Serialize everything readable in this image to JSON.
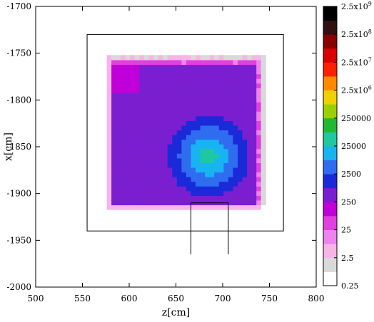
{
  "chart_data": {
    "type": "heatmap",
    "title": "",
    "xlabel": "z[cm]",
    "ylabel": "x[cm]",
    "xlim": [
      500,
      800
    ],
    "ylim": [
      -2000,
      -1700
    ],
    "xticks": [
      "500",
      "550",
      "600",
      "650",
      "700",
      "750",
      "800"
    ],
    "yticks": [
      "-2000",
      "-1950",
      "-1900",
      "-1850",
      "-1800",
      "-1750",
      "-1700"
    ],
    "grid": false,
    "colorbar": {
      "scale": "log",
      "range": [
        0.25,
        2500000000
      ],
      "labels": [
        {
          "value": 0.25,
          "text": "0.25"
        },
        {
          "value": 2.5,
          "text": "2.5"
        },
        {
          "value": 25,
          "text": "25"
        },
        {
          "value": 250,
          "text": "250"
        },
        {
          "value": 2500,
          "text": "2500"
        },
        {
          "value": 25000,
          "text": "25000"
        },
        {
          "value": 250000,
          "text": "250000"
        },
        {
          "value": 2500000,
          "text": "2.5x10",
          "exp": "6"
        },
        {
          "value": 25000000,
          "text": "2.5x10",
          "exp": "7"
        },
        {
          "value": 250000000,
          "text": "2.5x10",
          "exp": "8"
        },
        {
          "value": 2500000000,
          "text": "2.5x10",
          "exp": "9"
        }
      ],
      "stops": [
        "#ffffff",
        "#d9d9d9",
        "#f7b4e6",
        "#ee82ee",
        "#e040e0",
        "#c000d8",
        "#7a1fd0",
        "#1a2ad8",
        "#2f6cf0",
        "#18b4f2",
        "#20c8a0",
        "#22b830",
        "#9ad000",
        "#f0d000",
        "#ff8a00",
        "#ff2000",
        "#d80000",
        "#8a0000",
        "#301010",
        "#000000"
      ]
    },
    "field": {
      "peak_z": 685,
      "peak_x": -1860,
      "peak_value": 60000,
      "core_zlim": [
        583,
        737
      ],
      "core_xlim": [
        -1910,
        -1760
      ],
      "base_value": 700
    },
    "outline_box": {
      "zlim": [
        555,
        765
      ],
      "xlim": [
        -1940,
        -1730
      ]
    },
    "support_lines": {
      "z": [
        666,
        706
      ],
      "xlim": [
        -1965,
        -1910
      ]
    }
  }
}
